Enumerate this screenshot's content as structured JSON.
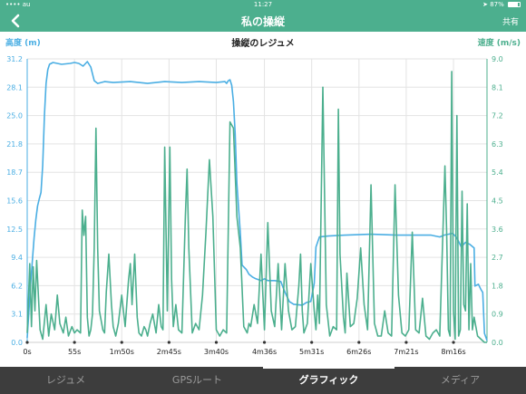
{
  "status_bar": {
    "carrier": "•••• au",
    "time": "11:27",
    "battery": "87%"
  },
  "nav": {
    "title": "私の操縦",
    "share": "共有"
  },
  "chart_labels": {
    "left_axis": "高度 (m)",
    "right_axis": "速度 (m/s)",
    "title": "操縦のレジュメ"
  },
  "tabs": [
    {
      "label": "レジュメ"
    },
    {
      "label": "GPSルート"
    },
    {
      "label": "グラフィック"
    },
    {
      "label": "メディア"
    }
  ],
  "colors": {
    "altitude": "#4aaee3",
    "speed": "#4caf8e",
    "grid": "#e3e3e3"
  },
  "chart_data": {
    "type": "line",
    "title": "操縦のレジュメ",
    "ylabel_left": "高度 (m)",
    "ylabel_right": "速度 (m/s)",
    "x_ticks": [
      "0s",
      "55s",
      "1m50s",
      "2m45s",
      "3m40s",
      "4m36s",
      "5m31s",
      "6m26s",
      "7m21s",
      "8m16s"
    ],
    "x_tick_seconds": [
      0,
      55,
      110,
      165,
      220,
      276,
      331,
      386,
      441,
      496
    ],
    "xlim": [
      0,
      535
    ],
    "y_left_ticks": [
      "0.0",
      "3.1",
      "6.2",
      "9.4",
      "12.5",
      "15.6",
      "18.7",
      "21.8",
      "25.0",
      "28.1",
      "31.2"
    ],
    "ylim_left": [
      0,
      31.2
    ],
    "y_right_ticks": [
      "0.0",
      "0.9",
      "1.8",
      "2.7",
      "3.6",
      "4.5",
      "5.4",
      "6.3",
      "7.2",
      "8.1",
      "9.0"
    ],
    "ylim_right": [
      0,
      9.0
    ],
    "grid": true,
    "series": [
      {
        "name": "高度 (m)",
        "axis": "left",
        "x": [
          0,
          2,
          4,
          6,
          8,
          10,
          12,
          14,
          16,
          18,
          20,
          22,
          24,
          26,
          30,
          40,
          50,
          55,
          60,
          65,
          70,
          72,
          74,
          78,
          82,
          90,
          100,
          120,
          140,
          160,
          180,
          200,
          220,
          230,
          232,
          234,
          236,
          238,
          240,
          242,
          244,
          248,
          250,
          255,
          258,
          262,
          266,
          272,
          276,
          280,
          288,
          295,
          300,
          305,
          310,
          320,
          325,
          330,
          334,
          336,
          340,
          350,
          370,
          400,
          430,
          460,
          470,
          475,
          480,
          485,
          490,
          495,
          500,
          505,
          510,
          515,
          520,
          521,
          525,
          528,
          530,
          532,
          535
        ],
        "values": [
          0.5,
          3.5,
          6.5,
          9.0,
          11.5,
          13.5,
          15.0,
          15.8,
          16.5,
          19.5,
          25.0,
          28.5,
          30.0,
          30.6,
          30.8,
          30.6,
          30.7,
          30.8,
          30.7,
          30.4,
          30.9,
          30.6,
          30.3,
          28.8,
          28.5,
          28.7,
          28.6,
          28.7,
          28.5,
          28.7,
          28.6,
          28.7,
          28.6,
          28.7,
          28.5,
          28.8,
          28.9,
          28.3,
          26.5,
          23.0,
          17.5,
          12.0,
          8.5,
          8.0,
          7.5,
          7.2,
          7.0,
          6.8,
          7.0,
          6.8,
          6.8,
          6.7,
          5.5,
          4.5,
          4.2,
          4.1,
          4.4,
          4.5,
          6.5,
          10.5,
          11.6,
          11.7,
          11.8,
          11.9,
          11.8,
          11.8,
          11.8,
          11.7,
          11.6,
          11.8,
          11.9,
          12.0,
          11.5,
          10.5,
          11.0,
          10.8,
          10.4,
          6.2,
          6.4,
          5.8,
          5.5,
          1.0,
          0.2
        ]
      },
      {
        "name": "速度 (m/s)",
        "axis": "right",
        "x": [
          0,
          3,
          5,
          7,
          9,
          11,
          13,
          15,
          18,
          22,
          25,
          28,
          32,
          35,
          38,
          42,
          45,
          48,
          52,
          55,
          58,
          62,
          64,
          66,
          68,
          70,
          72,
          74,
          76,
          78,
          80,
          82,
          84,
          88,
          90,
          92,
          95,
          98,
          100,
          103,
          106,
          110,
          114,
          118,
          120,
          122,
          125,
          128,
          130,
          133,
          136,
          138,
          140,
          143,
          146,
          150,
          153,
          156,
          158,
          160,
          163,
          166,
          168,
          170,
          173,
          176,
          180,
          184,
          186,
          188,
          192,
          196,
          200,
          204,
          208,
          212,
          216,
          220,
          224,
          228,
          232,
          236,
          240,
          244,
          248,
          252,
          256,
          258,
          260,
          264,
          268,
          272,
          276,
          280,
          284,
          288,
          292,
          296,
          300,
          304,
          308,
          312,
          316,
          318,
          320,
          322,
          326,
          330,
          334,
          336,
          338,
          340,
          344,
          348,
          352,
          356,
          360,
          362,
          364,
          368,
          370,
          372,
          376,
          380,
          384,
          388,
          392,
          396,
          400,
          404,
          408,
          412,
          416,
          420,
          424,
          428,
          432,
          436,
          440,
          444,
          448,
          452,
          456,
          460,
          464,
          468,
          472,
          476,
          480,
          484,
          486,
          488,
          490,
          492,
          494,
          496,
          498,
          500,
          502,
          504,
          506,
          508,
          510,
          512,
          514,
          516,
          518,
          520,
          524,
          528,
          532,
          535
        ],
        "values": [
          0.3,
          2.5,
          0.5,
          2.4,
          1.0,
          2.6,
          1.5,
          0.4,
          0.1,
          1.2,
          0.2,
          0.9,
          0.4,
          1.5,
          0.6,
          0.3,
          0.8,
          0.2,
          0.5,
          0.3,
          0.4,
          0.3,
          4.2,
          3.4,
          4.0,
          0.8,
          0.2,
          0.4,
          0.9,
          3.0,
          6.8,
          3.0,
          1.0,
          0.4,
          0.3,
          1.6,
          2.8,
          1.2,
          0.5,
          0.2,
          0.6,
          1.5,
          0.5,
          2.0,
          2.5,
          1.2,
          2.8,
          0.8,
          0.3,
          0.2,
          0.5,
          0.4,
          0.2,
          0.6,
          0.9,
          0.3,
          1.2,
          0.5,
          0.4,
          6.2,
          1.0,
          6.2,
          2.0,
          0.5,
          1.2,
          0.4,
          0.3,
          4.0,
          5.5,
          3.0,
          0.3,
          0.6,
          0.4,
          1.5,
          3.5,
          5.8,
          4.0,
          0.4,
          0.2,
          0.4,
          0.3,
          7.0,
          6.8,
          4.0,
          3.0,
          0.5,
          0.3,
          0.6,
          0.5,
          1.2,
          0.6,
          2.8,
          0.4,
          3.8,
          1.0,
          0.5,
          2.5,
          0.4,
          2.5,
          1.0,
          0.4,
          0.5,
          1.8,
          2.8,
          1.0,
          0.3,
          0.6,
          2.5,
          1.0,
          0.4,
          1.5,
          0.6,
          8.1,
          1.2,
          0.2,
          0.5,
          0.4,
          7.4,
          2.8,
          0.8,
          0.3,
          2.2,
          0.5,
          0.6,
          1.4,
          3.0,
          1.2,
          0.4,
          5.0,
          0.6,
          0.2,
          0.2,
          1.0,
          0.3,
          0.2,
          5.0,
          1.5,
          0.3,
          0.2,
          0.4,
          3.5,
          0.4,
          0.3,
          1.4,
          0.2,
          0.1,
          0.3,
          0.4,
          0.2,
          3.8,
          5.6,
          3.5,
          0.4,
          0.2,
          8.6,
          1.0,
          0.1,
          7.2,
          0.2,
          0.4,
          4.8,
          1.2,
          1.0,
          4.4,
          0.4,
          2.5,
          0.4,
          0.8,
          0.2,
          0.1,
          0.0,
          0.0
        ]
      }
    ]
  }
}
